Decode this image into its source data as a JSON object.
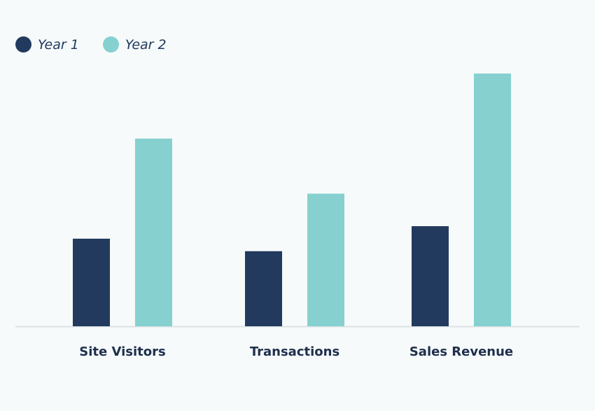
{
  "chart_data": {
    "type": "bar",
    "categories": [
      "Site Visitors",
      "Transactions",
      "Sales Revenue"
    ],
    "series": [
      {
        "name": "Year 1",
        "color": "#223a5e",
        "values": [
          35,
          30,
          40
        ]
      },
      {
        "name": "Year 2",
        "color": "#86d1cf",
        "values": [
          75,
          53,
          101
        ]
      }
    ],
    "ylim": [
      0,
      101
    ],
    "grid": false,
    "legend_position": "top-left"
  }
}
